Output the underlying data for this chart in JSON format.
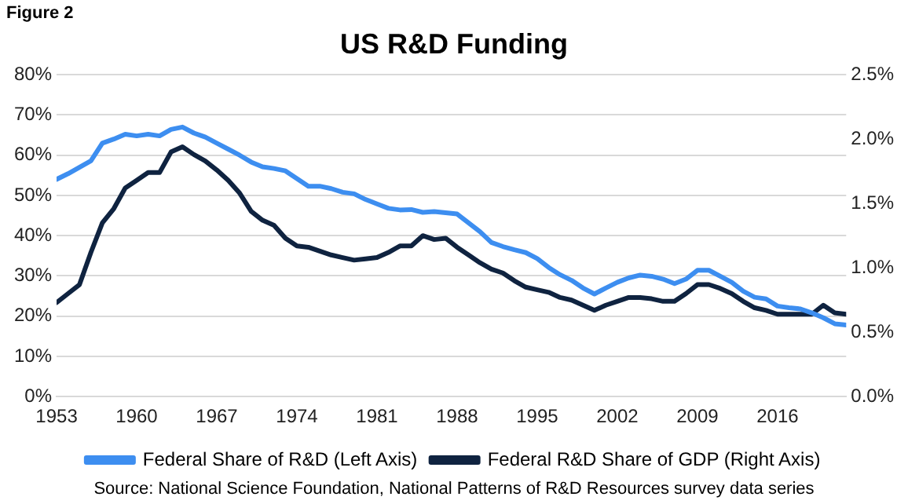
{
  "chart_data": {
    "type": "line",
    "title": "US R&D Funding",
    "annotations": [
      "Figure 2",
      "Source: National Science Foundation, National Patterns of R&D Resources survey data series"
    ],
    "x": [
      1953,
      1954,
      1955,
      1956,
      1957,
      1958,
      1959,
      1960,
      1961,
      1962,
      1963,
      1964,
      1965,
      1966,
      1967,
      1968,
      1969,
      1970,
      1971,
      1972,
      1973,
      1974,
      1975,
      1976,
      1977,
      1978,
      1979,
      1980,
      1981,
      1982,
      1983,
      1984,
      1985,
      1986,
      1987,
      1988,
      1989,
      1990,
      1991,
      1992,
      1993,
      1994,
      1995,
      1996,
      1997,
      1998,
      1999,
      2000,
      2001,
      2002,
      2003,
      2004,
      2005,
      2006,
      2007,
      2008,
      2009,
      2010,
      2011,
      2012,
      2013,
      2014,
      2015,
      2016,
      2017,
      2018,
      2019,
      2020,
      2021,
      2022
    ],
    "series": [
      {
        "name": "Federal Share of R&D (Left Axis)",
        "color": "#3d8ef0",
        "values": [
          54,
          55.4,
          57,
          58.6,
          63,
          64,
          65.2,
          64.8,
          65.2,
          64.8,
          66.4,
          67,
          65.5,
          64.5,
          63,
          61.5,
          60,
          58.3,
          57.1,
          56.7,
          56.1,
          54.2,
          52.3,
          52.3,
          51.7,
          50.8,
          50.4,
          49,
          47.9,
          46.8,
          46.4,
          46.5,
          45.8,
          46,
          45.7,
          45.4,
          43.2,
          41,
          38.3,
          37.3,
          36.5,
          35.8,
          34.3,
          32.1,
          30.3,
          28.9,
          27,
          25.5,
          27,
          28.4,
          29.5,
          30.2,
          29.9,
          29.2,
          28.1,
          29.2,
          31.4,
          31.4,
          29.9,
          28.4,
          26.2,
          24.7,
          24.3,
          22.5,
          22.1,
          21.8,
          20.8,
          19.6,
          18.1,
          17.8
        ]
      },
      {
        "name": "Federal R&D Share of GDP (Right Axis)",
        "color": "#0f2340",
        "axis": "y2",
        "values": [
          0.73,
          0.8,
          0.87,
          1.12,
          1.35,
          1.46,
          1.62,
          1.68,
          1.74,
          1.74,
          1.9,
          1.94,
          1.88,
          1.83,
          1.76,
          1.68,
          1.58,
          1.44,
          1.37,
          1.33,
          1.23,
          1.17,
          1.16,
          1.13,
          1.1,
          1.08,
          1.06,
          1.07,
          1.08,
          1.12,
          1.17,
          1.17,
          1.25,
          1.22,
          1.23,
          1.16,
          1.1,
          1.04,
          0.99,
          0.96,
          0.9,
          0.85,
          0.83,
          0.81,
          0.77,
          0.75,
          0.71,
          0.67,
          0.71,
          0.74,
          0.77,
          0.77,
          0.76,
          0.74,
          0.74,
          0.8,
          0.87,
          0.87,
          0.84,
          0.8,
          0.74,
          0.69,
          0.67,
          0.64,
          0.64,
          0.64,
          0.64,
          0.71,
          0.65,
          0.64
        ]
      }
    ],
    "xlim": [
      1953,
      2022
    ],
    "xticks": [
      1953,
      1960,
      1967,
      1974,
      1981,
      1988,
      1995,
      2002,
      2009,
      2016
    ],
    "ylim": [
      0,
      80
    ],
    "yticks": [
      {
        "value": 0,
        "label": "0%"
      },
      {
        "value": 10,
        "label": "10%"
      },
      {
        "value": 20,
        "label": "20%"
      },
      {
        "value": 30,
        "label": "30%"
      },
      {
        "value": 40,
        "label": "40%"
      },
      {
        "value": 50,
        "label": "50%"
      },
      {
        "value": 60,
        "label": "60%"
      },
      {
        "value": 70,
        "label": "70%"
      },
      {
        "value": 80,
        "label": "80%"
      }
    ],
    "y2lim": [
      0,
      2.5
    ],
    "y2ticks": [
      {
        "value": 0,
        "label": "0.0%"
      },
      {
        "value": 0.5,
        "label": "0.5%"
      },
      {
        "value": 1,
        "label": "1.0%"
      },
      {
        "value": 1.5,
        "label": "1.5%"
      },
      {
        "value": 2,
        "label": "2.0%"
      },
      {
        "value": 2.5,
        "label": "2.5%"
      }
    ],
    "grid": "y",
    "legend": "bottom",
    "marker": "none",
    "line_style": "solid"
  }
}
